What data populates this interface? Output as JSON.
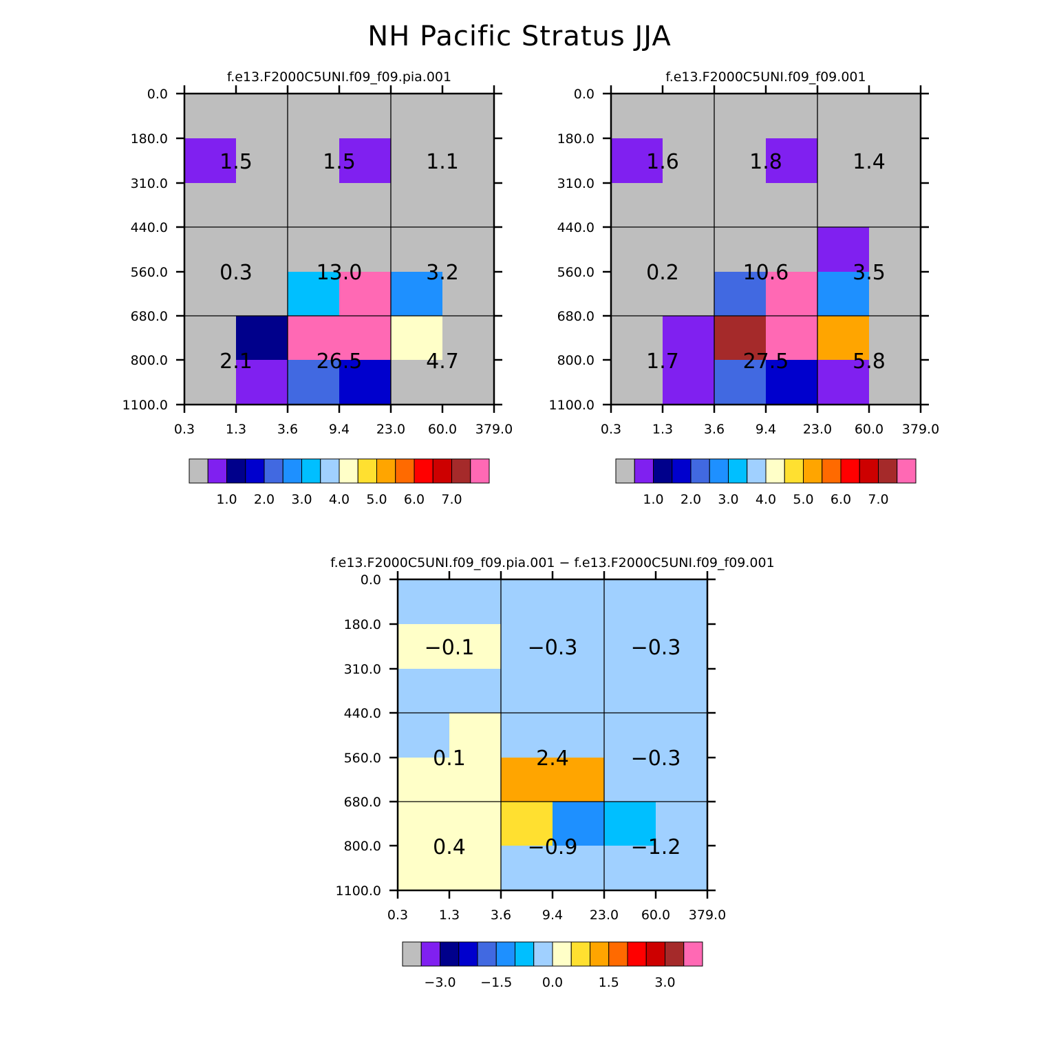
{
  "figure": {
    "title": "NH Pacific Stratus JJA"
  },
  "chart_data": [
    {
      "type": "heatmap",
      "title": "f.e13.F2000C5UNI.f09_f09.pia.001",
      "x_ticks": [
        "0.3",
        "1.3",
        "3.6",
        "9.4",
        "23.0",
        "60.0",
        "379.0"
      ],
      "y_ticks": [
        "0.0",
        "180.0",
        "310.0",
        "440.0",
        "560.0",
        "680.0",
        "800.0",
        "1100.0"
      ],
      "colors": [
        [
          "#bebebe",
          "#bebebe",
          "#bebebe",
          "#bebebe",
          "#bebebe",
          "#bebebe"
        ],
        [
          "#8020f0",
          "#bebebe",
          "#bebebe",
          "#8020f0",
          "#bebebe",
          "#bebebe"
        ],
        [
          "#bebebe",
          "#bebebe",
          "#bebebe",
          "#bebebe",
          "#bebebe",
          "#bebebe"
        ],
        [
          "#bebebe",
          "#bebebe",
          "#bebebe",
          "#bebebe",
          "#bebebe",
          "#bebebe"
        ],
        [
          "#bebebe",
          "#bebebe",
          "#00bfff",
          "#ff69b4",
          "#1e90ff",
          "#bebebe"
        ],
        [
          "#bebebe",
          "#00008b",
          "#ff69b4",
          "#ff69b4",
          "#ffffc8",
          "#bebebe"
        ],
        [
          "#bebebe",
          "#8020f0",
          "#4169e1",
          "#0000cd",
          "#bebebe",
          "#bebebe"
        ]
      ],
      "cell_labels": [
        {
          "col": 0,
          "row": 0,
          "text": "1.5"
        },
        {
          "col": 1,
          "row": 0,
          "text": "1.5"
        },
        {
          "col": 2,
          "row": 0,
          "text": "1.1"
        },
        {
          "col": 0,
          "row": 1,
          "text": "0.3"
        },
        {
          "col": 1,
          "row": 1,
          "text": "13.0"
        },
        {
          "col": 2,
          "row": 1,
          "text": "3.2"
        },
        {
          "col": 0,
          "row": 2,
          "text": "2.1"
        },
        {
          "col": 1,
          "row": 2,
          "text": "26.5"
        },
        {
          "col": 2,
          "row": 2,
          "text": "4.7"
        }
      ],
      "colorbar": {
        "colors": [
          "#bebebe",
          "#8020f0",
          "#00008b",
          "#0000cd",
          "#4169e1",
          "#1e90ff",
          "#00bfff",
          "#a0d0ff",
          "#ffffc8",
          "#ffe030",
          "#ffa500",
          "#ff6a00",
          "#ff0000",
          "#cd0000",
          "#a52a2a",
          "#ff69b4"
        ],
        "labels": [
          "1.0",
          "2.0",
          "3.0",
          "4.0",
          "5.0",
          "6.0",
          "7.0"
        ],
        "label_boundaries": [
          2,
          4,
          6,
          8,
          10,
          12,
          14
        ]
      }
    },
    {
      "type": "heatmap",
      "title": "f.e13.F2000C5UNI.f09_f09.001",
      "x_ticks": [
        "0.3",
        "1.3",
        "3.6",
        "9.4",
        "23.0",
        "60.0",
        "379.0"
      ],
      "y_ticks": [
        "0.0",
        "180.0",
        "310.0",
        "440.0",
        "560.0",
        "680.0",
        "800.0",
        "1100.0"
      ],
      "colors": [
        [
          "#bebebe",
          "#bebebe",
          "#bebebe",
          "#bebebe",
          "#bebebe",
          "#bebebe"
        ],
        [
          "#8020f0",
          "#bebebe",
          "#bebebe",
          "#8020f0",
          "#bebebe",
          "#bebebe"
        ],
        [
          "#bebebe",
          "#bebebe",
          "#bebebe",
          "#bebebe",
          "#bebebe",
          "#bebebe"
        ],
        [
          "#bebebe",
          "#bebebe",
          "#bebebe",
          "#bebebe",
          "#8020f0",
          "#bebebe"
        ],
        [
          "#bebebe",
          "#bebebe",
          "#4169e1",
          "#ff69b4",
          "#1e90ff",
          "#bebebe"
        ],
        [
          "#bebebe",
          "#8020f0",
          "#a52a2a",
          "#ff69b4",
          "#ffa500",
          "#bebebe"
        ],
        [
          "#bebebe",
          "#8020f0",
          "#4169e1",
          "#0000cd",
          "#8020f0",
          "#bebebe"
        ]
      ],
      "cell_labels": [
        {
          "col": 0,
          "row": 0,
          "text": "1.6"
        },
        {
          "col": 1,
          "row": 0,
          "text": "1.8"
        },
        {
          "col": 2,
          "row": 0,
          "text": "1.4"
        },
        {
          "col": 0,
          "row": 1,
          "text": "0.2"
        },
        {
          "col": 1,
          "row": 1,
          "text": "10.6"
        },
        {
          "col": 2,
          "row": 1,
          "text": "3.5"
        },
        {
          "col": 0,
          "row": 2,
          "text": "1.7"
        },
        {
          "col": 1,
          "row": 2,
          "text": "27.5"
        },
        {
          "col": 2,
          "row": 2,
          "text": "5.8"
        }
      ],
      "colorbar": {
        "colors": [
          "#bebebe",
          "#8020f0",
          "#00008b",
          "#0000cd",
          "#4169e1",
          "#1e90ff",
          "#00bfff",
          "#a0d0ff",
          "#ffffc8",
          "#ffe030",
          "#ffa500",
          "#ff6a00",
          "#ff0000",
          "#cd0000",
          "#a52a2a",
          "#ff69b4"
        ],
        "labels": [
          "1.0",
          "2.0",
          "3.0",
          "4.0",
          "5.0",
          "6.0",
          "7.0"
        ],
        "label_boundaries": [
          2,
          4,
          6,
          8,
          10,
          12,
          14
        ]
      }
    },
    {
      "type": "heatmap",
      "title": "f.e13.F2000C5UNI.f09_f09.pia.001 − f.e13.F2000C5UNI.f09_f09.001",
      "x_ticks": [
        "0.3",
        "1.3",
        "3.6",
        "9.4",
        "23.0",
        "60.0",
        "379.0"
      ],
      "y_ticks": [
        "0.0",
        "180.0",
        "310.0",
        "440.0",
        "560.0",
        "680.0",
        "800.0",
        "1100.0"
      ],
      "colors": [
        [
          "#a0d0ff",
          "#a0d0ff",
          "#a0d0ff",
          "#a0d0ff",
          "#a0d0ff",
          "#a0d0ff"
        ],
        [
          "#ffffc8",
          "#ffffc8",
          "#a0d0ff",
          "#a0d0ff",
          "#a0d0ff",
          "#a0d0ff"
        ],
        [
          "#a0d0ff",
          "#a0d0ff",
          "#a0d0ff",
          "#a0d0ff",
          "#a0d0ff",
          "#a0d0ff"
        ],
        [
          "#a0d0ff",
          "#ffffc8",
          "#a0d0ff",
          "#a0d0ff",
          "#a0d0ff",
          "#a0d0ff"
        ],
        [
          "#ffffc8",
          "#ffffc8",
          "#ffa500",
          "#ffa500",
          "#a0d0ff",
          "#a0d0ff"
        ],
        [
          "#ffffc8",
          "#ffffc8",
          "#ffe030",
          "#1e90ff",
          "#00bfff",
          "#a0d0ff"
        ],
        [
          "#ffffc8",
          "#ffffc8",
          "#a0d0ff",
          "#a0d0ff",
          "#a0d0ff",
          "#a0d0ff"
        ]
      ],
      "cell_labels": [
        {
          "col": 0,
          "row": 0,
          "text": "−0.1"
        },
        {
          "col": 1,
          "row": 0,
          "text": "−0.3"
        },
        {
          "col": 2,
          "row": 0,
          "text": "−0.3"
        },
        {
          "col": 0,
          "row": 1,
          "text": "0.1"
        },
        {
          "col": 1,
          "row": 1,
          "text": "2.4"
        },
        {
          "col": 2,
          "row": 1,
          "text": "−0.3"
        },
        {
          "col": 0,
          "row": 2,
          "text": "0.4"
        },
        {
          "col": 1,
          "row": 2,
          "text": "−0.9"
        },
        {
          "col": 2,
          "row": 2,
          "text": "−1.2"
        }
      ],
      "colorbar": {
        "colors": [
          "#bebebe",
          "#8020f0",
          "#00008b",
          "#0000cd",
          "#4169e1",
          "#1e90ff",
          "#00bfff",
          "#a0d0ff",
          "#ffffc8",
          "#ffe030",
          "#ffa500",
          "#ff6a00",
          "#ff0000",
          "#cd0000",
          "#a52a2a",
          "#ff69b4"
        ],
        "labels": [
          "−3.0",
          "−1.5",
          "0.0",
          "1.5",
          "3.0"
        ],
        "label_boundaries": [
          2,
          5,
          8,
          11,
          14
        ]
      }
    }
  ]
}
